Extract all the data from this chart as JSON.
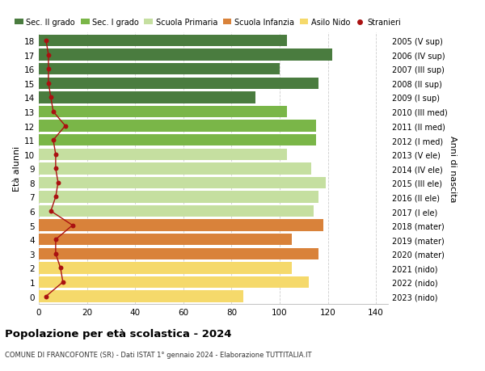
{
  "ages": [
    18,
    17,
    16,
    15,
    14,
    13,
    12,
    11,
    10,
    9,
    8,
    7,
    6,
    5,
    4,
    3,
    2,
    1,
    0
  ],
  "bar_values": [
    103,
    122,
    100,
    116,
    90,
    103,
    115,
    115,
    103,
    113,
    119,
    116,
    114,
    118,
    105,
    116,
    105,
    112,
    85
  ],
  "stranieri": [
    3,
    4,
    4,
    4,
    5,
    6,
    11,
    6,
    7,
    7,
    8,
    7,
    5,
    14,
    7,
    7,
    9,
    10,
    3
  ],
  "right_labels": [
    "2005 (V sup)",
    "2006 (IV sup)",
    "2007 (III sup)",
    "2008 (II sup)",
    "2009 (I sup)",
    "2010 (III med)",
    "2011 (II med)",
    "2012 (I med)",
    "2013 (V ele)",
    "2014 (IV ele)",
    "2015 (III ele)",
    "2016 (II ele)",
    "2017 (I ele)",
    "2018 (mater)",
    "2019 (mater)",
    "2020 (mater)",
    "2021 (nido)",
    "2022 (nido)",
    "2023 (nido)"
  ],
  "bar_colors": [
    "#4a7c3f",
    "#4a7c3f",
    "#4a7c3f",
    "#4a7c3f",
    "#4a7c3f",
    "#7ab648",
    "#7ab648",
    "#7ab648",
    "#c5dfa0",
    "#c5dfa0",
    "#c5dfa0",
    "#c5dfa0",
    "#c5dfa0",
    "#d9823a",
    "#d9823a",
    "#d9823a",
    "#f5d96b",
    "#f5d96b",
    "#f5d96b"
  ],
  "legend_labels": [
    "Sec. II grado",
    "Sec. I grado",
    "Scuola Primaria",
    "Scuola Infanzia",
    "Asilo Nido",
    "Stranieri"
  ],
  "legend_colors": [
    "#4a7c3f",
    "#7ab648",
    "#c5dfa0",
    "#d9823a",
    "#f5d96b",
    "#aa1111"
  ],
  "ylabel_left": "Età alunni",
  "ylabel_right": "Anni di nascita",
  "xlim": [
    0,
    145
  ],
  "xticks": [
    0,
    20,
    40,
    60,
    80,
    100,
    120,
    140
  ],
  "title": "Popolazione per età scolastica - 2024",
  "subtitle": "COMUNE DI FRANCOFONTE (SR) - Dati ISTAT 1° gennaio 2024 - Elaborazione TUTTITALIA.IT",
  "bar_height": 0.82,
  "stranieri_color": "#aa1111",
  "grid_color": "#cccccc"
}
